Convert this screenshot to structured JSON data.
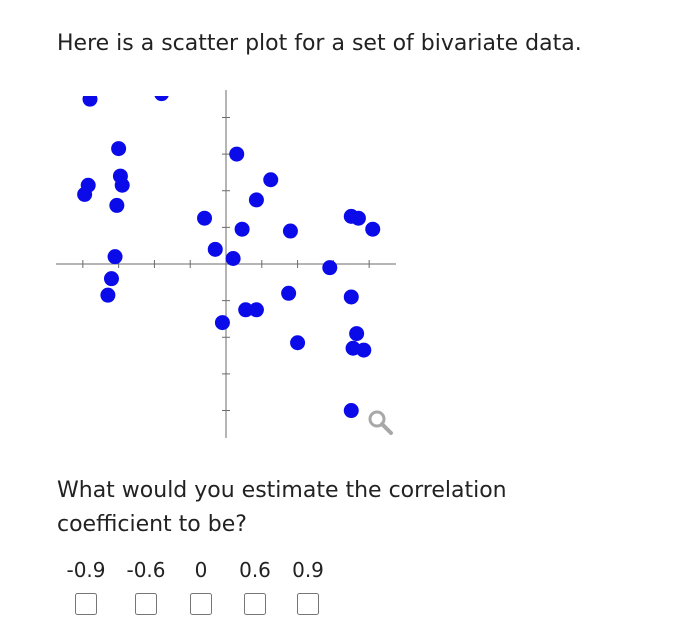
{
  "question": {
    "intro": "Here is a scatter plot for a set of bivariate data.",
    "ask": "What would you estimate the correlation coefficient to be?"
  },
  "choices": [
    {
      "label": "-0.9"
    },
    {
      "label": "-0.6"
    },
    {
      "label": "0"
    },
    {
      "label": "0.6"
    },
    {
      "label": "0.9"
    }
  ],
  "chart_data": {
    "type": "scatter",
    "title": "",
    "xlabel": "",
    "ylabel": "",
    "xlim": [
      -9.5,
      9.5
    ],
    "ylim": [
      -9.5,
      9.5
    ],
    "grid": false,
    "points_color": "#0b0bea",
    "zoom_icon": "magnifier-icon",
    "points": [
      [
        -7.6,
        9.0
      ],
      [
        -3.6,
        9.3
      ],
      [
        -6.0,
        6.3
      ],
      [
        -7.7,
        4.3
      ],
      [
        -7.9,
        3.8
      ],
      [
        -5.9,
        4.8
      ],
      [
        -5.8,
        4.3
      ],
      [
        -6.1,
        3.2
      ],
      [
        0.6,
        6.0
      ],
      [
        2.5,
        4.6
      ],
      [
        1.7,
        3.5
      ],
      [
        -1.2,
        2.5
      ],
      [
        0.9,
        1.9
      ],
      [
        3.6,
        1.8
      ],
      [
        7.0,
        2.6
      ],
      [
        7.4,
        2.5
      ],
      [
        8.2,
        1.9
      ],
      [
        -6.2,
        0.4
      ],
      [
        -6.4,
        -0.8
      ],
      [
        -6.6,
        -1.7
      ],
      [
        -0.6,
        0.8
      ],
      [
        0.4,
        0.3
      ],
      [
        5.8,
        -0.2
      ],
      [
        -0.2,
        -3.2
      ],
      [
        1.1,
        -2.5
      ],
      [
        1.7,
        -2.5
      ],
      [
        3.5,
        -1.6
      ],
      [
        7.0,
        -1.8
      ],
      [
        7.3,
        -3.8
      ],
      [
        4.0,
        -4.3
      ],
      [
        7.1,
        -4.6
      ],
      [
        7.7,
        -4.7
      ],
      [
        7.0,
        -8.0
      ]
    ]
  }
}
